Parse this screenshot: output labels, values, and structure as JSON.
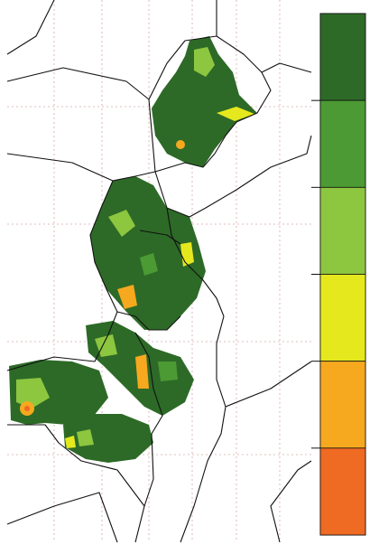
{
  "legend": {
    "colors": [
      "#2d6a27",
      "#4c9a33",
      "#8dc63f",
      "#e6e81e",
      "#f6a81f",
      "#ef6a22"
    ]
  }
}
